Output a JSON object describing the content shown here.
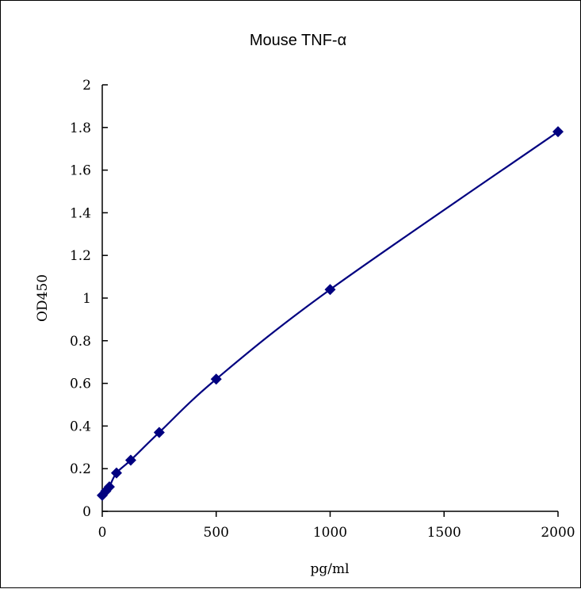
{
  "chart_data": {
    "type": "scatter",
    "title": "Mouse   TNF-α",
    "xlabel": "pg/ml",
    "ylabel": "OD450",
    "xlim": [
      0,
      2000
    ],
    "ylim": [
      0,
      2
    ],
    "x_ticks": [
      "0",
      "500",
      "1000",
      "1500",
      "2000"
    ],
    "y_ticks": [
      "0",
      "0.2",
      "0.4",
      "0.6",
      "0.8",
      "1",
      "1.2",
      "1.4",
      "1.6",
      "1.8",
      "2"
    ],
    "grid": false,
    "marker": "diamond",
    "series_color": "#000080",
    "series": [
      {
        "x": [
          0,
          15.6,
          31.2,
          62.5,
          125,
          250,
          500,
          1000,
          2000
        ],
        "y": [
          0.075,
          0.095,
          0.115,
          0.18,
          0.24,
          0.37,
          0.62,
          1.04,
          1.78
        ],
        "fit_line": "smooth"
      }
    ]
  }
}
